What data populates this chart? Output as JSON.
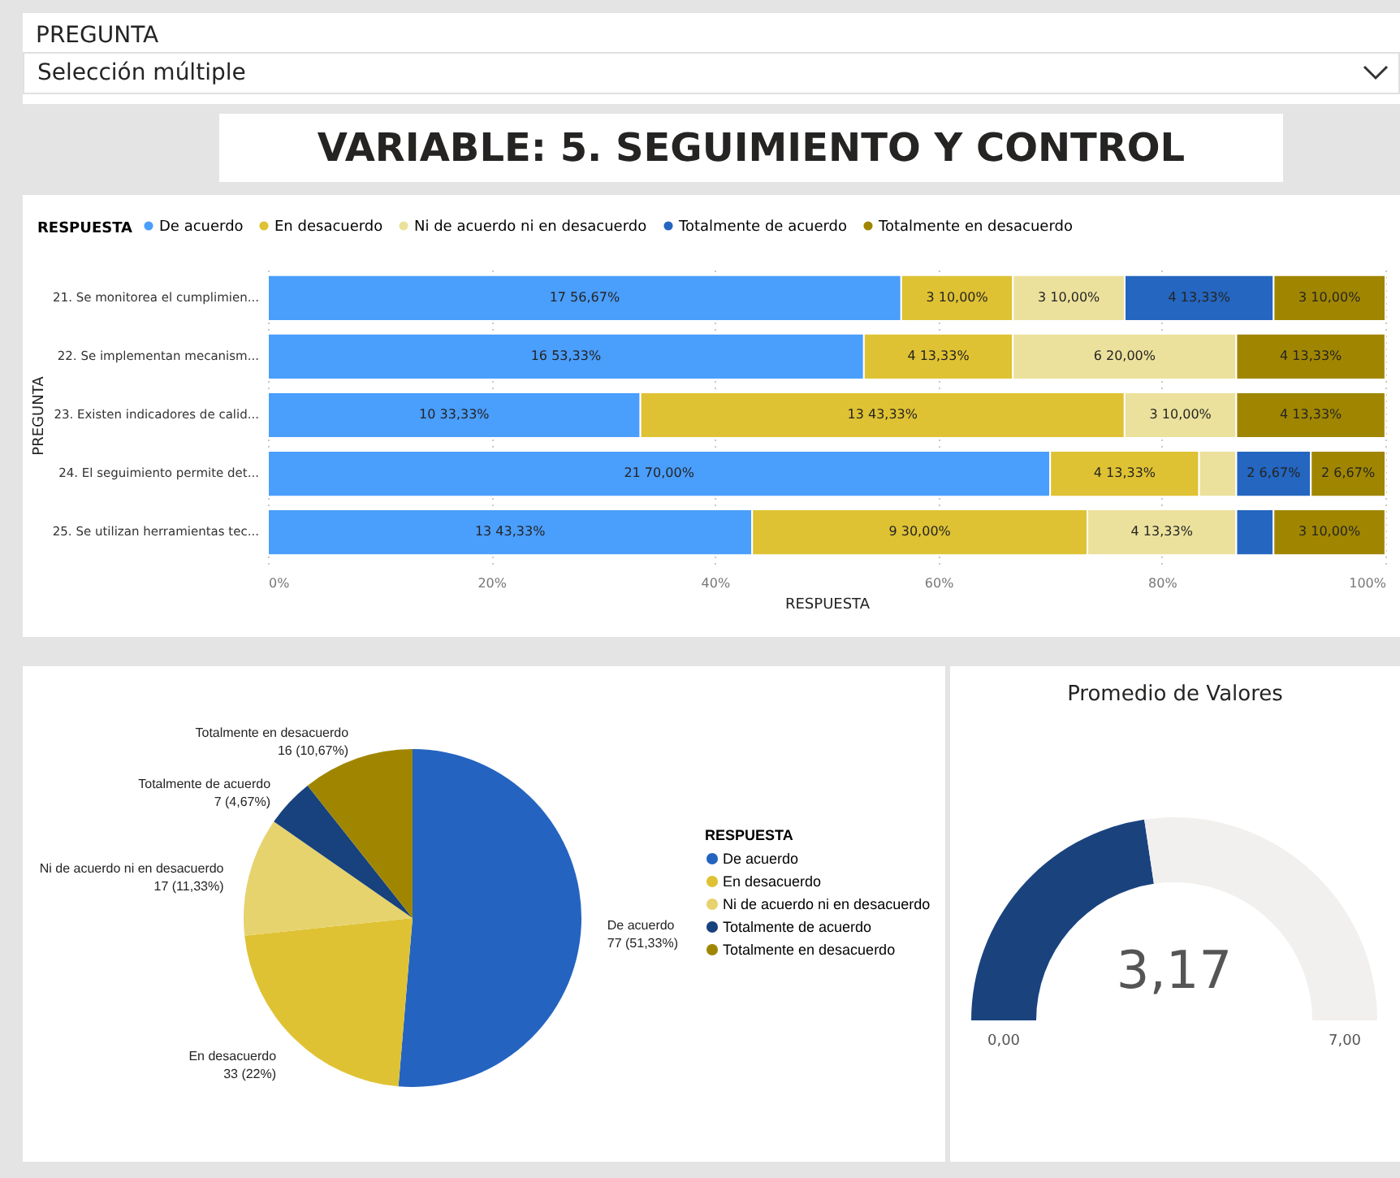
{
  "chart_data": [
    {
      "type": "other",
      "title": "PREGUNTA",
      "annotations": [
        "Selección múltiple"
      ]
    },
    {
      "type": "other",
      "title": "VARIABLE: 5. SEGUIMIENTO Y CONTROL"
    },
    {
      "type": "bar",
      "orientation": "horizontal",
      "stacked": true,
      "xlabel": "RESPUESTA",
      "ylabel": "PREGUNTA",
      "legend_title": "RESPUESTA",
      "legend": "top",
      "grid": "x",
      "categories": [
        "21. Se monitorea el cumplimien...",
        "22. Se implementan mecanism...",
        "23. Existen indicadores de calid...",
        "24. El seguimiento permite det...",
        "25. Se utilizan herramientas tec..."
      ],
      "xlim": [
        0,
        100
      ],
      "xticks": [
        {
          "value": 0,
          "label": "0%"
        },
        {
          "value": 20,
          "label": "20%"
        },
        {
          "value": 40,
          "label": "40%"
        },
        {
          "value": 60,
          "label": "60%"
        },
        {
          "value": 80,
          "label": "80%"
        },
        {
          "value": 100,
          "label": "100%"
        }
      ],
      "series": [
        {
          "name": "De acuerdo",
          "color": "#4a9efc",
          "values": [
            56.67,
            53.33,
            33.33,
            70,
            43.33
          ],
          "value_labels": [
            "17 56,67%",
            "16 53,33%",
            "10 33,33%",
            "21 70,00%",
            "13 43,33%"
          ]
        },
        {
          "name": "En desacuerdo",
          "color": "#dfc233",
          "values": [
            10,
            13.33,
            43.33,
            13.33,
            30
          ],
          "value_labels": [
            "3 10,00%",
            "4 13,33%",
            "13 43,33%",
            "4 13,33%",
            "9 30,00%"
          ]
        },
        {
          "name": "Ni de acuerdo ni en desacuerdo",
          "color": "#ebe19c",
          "values": [
            10,
            20,
            10,
            3.33,
            13.33
          ],
          "value_labels": [
            "3 10,00%",
            "6 20,00%",
            "3 10,00%",
            null,
            "4 13,33%"
          ]
        },
        {
          "name": "Totalmente de acuerdo",
          "color": "#2466c0",
          "values": [
            13.33,
            null,
            null,
            6.67,
            3.33
          ],
          "value_labels": [
            "4 13,33%",
            null,
            null,
            "2 6,67%",
            null
          ]
        },
        {
          "name": "Totalmente en desacuerdo",
          "color": "#a08600",
          "values": [
            10,
            13.33,
            13.33,
            6.67,
            10
          ],
          "value_labels": [
            "3 10,00%",
            "4 13,33%",
            "4 13,33%",
            "2 6,67%",
            "3 10,00%"
          ]
        }
      ]
    },
    {
      "type": "pie",
      "legend_title": "RESPUESTA",
      "legend": "right",
      "categories": [
        "De acuerdo",
        "En desacuerdo",
        "Ni de acuerdo ni en desacuerdo",
        "Totalmente de acuerdo",
        "Totalmente en desacuerdo"
      ],
      "values": [
        77,
        33,
        17,
        7,
        16
      ],
      "value_labels": [
        "77 (51,33%)",
        "33 (22%)",
        "17 (11,33%)",
        "7 (4,67%)",
        "16 (10,67%)"
      ],
      "colors": [
        "#2464c0",
        "#dfc233",
        "#e6d36d",
        "#17427d",
        "#a08600"
      ]
    },
    {
      "type": "donut",
      "title": "Promedio de Valores",
      "categories": [
        null,
        null
      ],
      "values": [
        3.17,
        3.83
      ],
      "value_labels": [
        "3,17",
        null
      ],
      "colors": [
        "#1a437e",
        "#f1f0ef"
      ],
      "annotations": [
        "0,00",
        "7,00"
      ]
    }
  ]
}
